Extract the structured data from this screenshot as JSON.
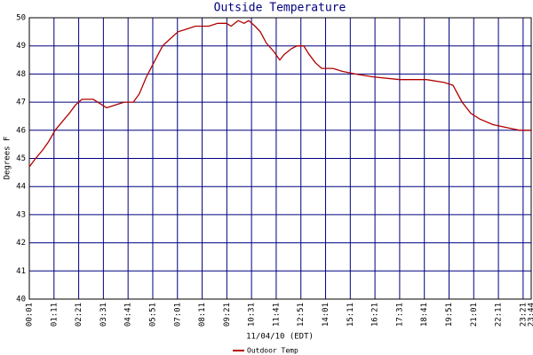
{
  "chart_data": {
    "type": "line",
    "title": "Outside Temperature",
    "x_label": "11/04/10 (EDT)",
    "y_label": "Degrees F",
    "xlim": [
      1,
      1424
    ],
    "ylim": [
      40,
      50
    ],
    "yticks": [
      40,
      41,
      42,
      43,
      44,
      45,
      46,
      47,
      48,
      49,
      50
    ],
    "xticks": [
      {
        "value": 1,
        "label": "00:01"
      },
      {
        "value": 71,
        "label": "01:11"
      },
      {
        "value": 141,
        "label": "02:21"
      },
      {
        "value": 211,
        "label": "03:31"
      },
      {
        "value": 281,
        "label": "04:41"
      },
      {
        "value": 351,
        "label": "05:51"
      },
      {
        "value": 421,
        "label": "07:01"
      },
      {
        "value": 491,
        "label": "08:11"
      },
      {
        "value": 561,
        "label": "09:21"
      },
      {
        "value": 631,
        "label": "10:31"
      },
      {
        "value": 701,
        "label": "11:41"
      },
      {
        "value": 771,
        "label": "12:51"
      },
      {
        "value": 841,
        "label": "14:01"
      },
      {
        "value": 911,
        "label": "15:11"
      },
      {
        "value": 981,
        "label": "16:21"
      },
      {
        "value": 1051,
        "label": "17:31"
      },
      {
        "value": 1121,
        "label": "18:41"
      },
      {
        "value": 1191,
        "label": "19:51"
      },
      {
        "value": 1261,
        "label": "21:01"
      },
      {
        "value": 1331,
        "label": "22:11"
      },
      {
        "value": 1401,
        "label": "23:21"
      },
      {
        "value": 1424,
        "label": "23:44"
      }
    ],
    "grid": true,
    "x": [
      1,
      19,
      39,
      56,
      74,
      94,
      114,
      132,
      150,
      170,
      182,
      195,
      220,
      245,
      270,
      296,
      313,
      333,
      358,
      379,
      396,
      422,
      447,
      472,
      510,
      535,
      560,
      573,
      593,
      610,
      623,
      641,
      656,
      673,
      694,
      711,
      724,
      744,
      760,
      779,
      794,
      812,
      830,
      862,
      887,
      925,
      976,
      1051,
      1127,
      1177,
      1202,
      1228,
      1253,
      1278,
      1316,
      1353,
      1391,
      1424
    ],
    "series": [
      {
        "name": "Outdoor Temp",
        "color": "#b00000",
        "values": [
          44.7,
          45.0,
          45.3,
          45.6,
          46.0,
          46.3,
          46.6,
          46.9,
          47.1,
          47.1,
          47.1,
          47.0,
          46.8,
          46.9,
          47.0,
          47.0,
          47.3,
          47.9,
          48.5,
          49.0,
          49.2,
          49.5,
          49.6,
          49.7,
          49.7,
          49.8,
          49.8,
          49.7,
          49.9,
          49.8,
          49.9,
          49.7,
          49.5,
          49.1,
          48.8,
          48.5,
          48.7,
          48.9,
          49.0,
          49.0,
          48.7,
          48.4,
          48.2,
          48.2,
          48.1,
          48.0,
          47.9,
          47.8,
          47.8,
          47.7,
          47.6,
          47.0,
          46.6,
          46.4,
          46.2,
          46.1,
          46.0,
          46.0
        ]
      }
    ]
  }
}
